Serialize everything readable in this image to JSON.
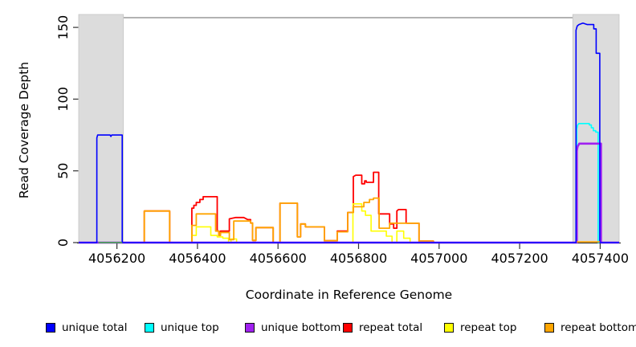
{
  "figure": {
    "xlabel": "Coordinate in Reference Genome",
    "ylabel": "Read Coverage Depth"
  },
  "legend": {
    "items": [
      {
        "label": "unique total",
        "color": "#0000FF"
      },
      {
        "label": "unique top",
        "color": "#00FFFF"
      },
      {
        "label": "unique bottom",
        "color": "#A020F0"
      },
      {
        "label": "repeat total",
        "color": "#FF0000"
      },
      {
        "label": "repeat top",
        "color": "#FFFF00"
      },
      {
        "label": "repeat bottom",
        "color": "#FFA500"
      }
    ]
  },
  "chart_data": {
    "type": "line",
    "step": true,
    "title": "",
    "xlabel": "Coordinate in Reference Genome",
    "ylabel": "Read Coverage Depth",
    "xlim": [
      4056105,
      4057447
    ],
    "ylim": [
      0,
      156.8
    ],
    "x_ticks": [
      4056200,
      4056400,
      4056600,
      4056800,
      4057000,
      4057200,
      4057400
    ],
    "y_ticks": [
      0,
      50,
      100,
      150
    ],
    "grid": false,
    "legend_position": "bottom",
    "shaded_regions": [
      {
        "name": "left-highlight",
        "x0": 4056105,
        "x1": 4056216,
        "color": "#DCDCDC"
      },
      {
        "name": "right-highlight",
        "x0": 4057332,
        "x1": 4057447,
        "color": "#DCDCDC"
      }
    ],
    "series": [
      {
        "name": "unique total",
        "color": "#0000FF",
        "points": [
          [
            4056105,
            0
          ],
          [
            4056150,
            0
          ],
          [
            4056150,
            73
          ],
          [
            4056152,
            75
          ],
          [
            4056183,
            75
          ],
          [
            4056185,
            74
          ],
          [
            4056187,
            75
          ],
          [
            4056213,
            75
          ],
          [
            4056213,
            0
          ],
          [
            4057340,
            0
          ],
          [
            4057340,
            148
          ],
          [
            4057343,
            151
          ],
          [
            4057347,
            152
          ],
          [
            4057357,
            153
          ],
          [
            4057368,
            152
          ],
          [
            4057384,
            152
          ],
          [
            4057384,
            149
          ],
          [
            4057390,
            149
          ],
          [
            4057390,
            132
          ],
          [
            4057399,
            132
          ],
          [
            4057399,
            0
          ],
          [
            4057447,
            0
          ]
        ]
      },
      {
        "name": "unique top",
        "color": "#00FFFF",
        "points": [
          [
            4056105,
            0
          ],
          [
            4057342,
            0
          ],
          [
            4057342,
            79
          ],
          [
            4057344,
            82
          ],
          [
            4057347,
            83
          ],
          [
            4057373,
            83
          ],
          [
            4057373,
            82
          ],
          [
            4057378,
            82
          ],
          [
            4057378,
            80
          ],
          [
            4057383,
            80
          ],
          [
            4057383,
            78
          ],
          [
            4057389,
            78
          ],
          [
            4057389,
            77
          ],
          [
            4057395,
            77
          ],
          [
            4057395,
            0
          ],
          [
            4057447,
            0
          ]
        ]
      },
      {
        "name": "unique bottom",
        "color": "#A020F0",
        "points": [
          [
            4056105,
            0
          ],
          [
            4057342,
            0
          ],
          [
            4057342,
            64
          ],
          [
            4057344,
            67
          ],
          [
            4057348,
            69
          ],
          [
            4057402,
            69
          ],
          [
            4057402,
            0
          ],
          [
            4057447,
            0
          ]
        ]
      },
      {
        "name": "repeat total",
        "color": "#FF0000",
        "points": [
          [
            4056268,
            0
          ],
          [
            4056268,
            22
          ],
          [
            4056331,
            22
          ],
          [
            4056331,
            0
          ],
          [
            4056386,
            0
          ],
          [
            4056386,
            24
          ],
          [
            4056391,
            24
          ],
          [
            4056391,
            26
          ],
          [
            4056397,
            26
          ],
          [
            4056397,
            28
          ],
          [
            4056406,
            28
          ],
          [
            4056406,
            30
          ],
          [
            4056414,
            30
          ],
          [
            4056414,
            32
          ],
          [
            4056449,
            32
          ],
          [
            4056449,
            8
          ],
          [
            4056453,
            8
          ],
          [
            4056453,
            5
          ],
          [
            4056457,
            5
          ],
          [
            4056457,
            8
          ],
          [
            4056479,
            8
          ],
          [
            4056479,
            16.5
          ],
          [
            4056495,
            17.5
          ],
          [
            4056515,
            17.5
          ],
          [
            4056525,
            16
          ],
          [
            4056532,
            16
          ],
          [
            4056532,
            13.6
          ],
          [
            4056537,
            13.6
          ],
          [
            4056537,
            1.5
          ],
          [
            4056545,
            1.5
          ],
          [
            4056545,
            10.5
          ],
          [
            4056588,
            10.5
          ],
          [
            4056588,
            0
          ],
          [
            4056605,
            0
          ],
          [
            4056605,
            27.5
          ],
          [
            4056648,
            27.5
          ],
          [
            4056648,
            4
          ],
          [
            4056656,
            4
          ],
          [
            4056656,
            13
          ],
          [
            4056668,
            13
          ],
          [
            4056668,
            11
          ],
          [
            4056715,
            11
          ],
          [
            4056715,
            1.3
          ],
          [
            4056747,
            1.3
          ],
          [
            4056747,
            8
          ],
          [
            4056773,
            8
          ],
          [
            4056773,
            21
          ],
          [
            4056787,
            21
          ],
          [
            4056787,
            46
          ],
          [
            4056793,
            47
          ],
          [
            4056808,
            47
          ],
          [
            4056808,
            41
          ],
          [
            4056815,
            41
          ],
          [
            4056815,
            43
          ],
          [
            4056819,
            43
          ],
          [
            4056819,
            42
          ],
          [
            4056837,
            42
          ],
          [
            4056837,
            49
          ],
          [
            4056850,
            49
          ],
          [
            4056850,
            20
          ],
          [
            4056877,
            20
          ],
          [
            4056877,
            13
          ],
          [
            4056887,
            13
          ],
          [
            4056887,
            10
          ],
          [
            4056895,
            10
          ],
          [
            4056895,
            22
          ],
          [
            4056899,
            23
          ],
          [
            4056918,
            23
          ],
          [
            4056918,
            13.5
          ],
          [
            4056950,
            13.5
          ],
          [
            4056950,
            1
          ],
          [
            4056986,
            1
          ],
          [
            4056986,
            0
          ]
        ]
      },
      {
        "name": "repeat top",
        "color": "#FFFF00",
        "points": [
          [
            4056386,
            0
          ],
          [
            4056386,
            5
          ],
          [
            4056397,
            5
          ],
          [
            4056397,
            11
          ],
          [
            4056433,
            11
          ],
          [
            4056433,
            5
          ],
          [
            4056449,
            5
          ],
          [
            4056449,
            4
          ],
          [
            4056463,
            4
          ],
          [
            4056463,
            3
          ],
          [
            4056477,
            3
          ],
          [
            4056477,
            0
          ],
          [
            4056483,
            0
          ],
          [
            4056483,
            2.5
          ],
          [
            4056497,
            2.5
          ],
          [
            4056497,
            0
          ],
          [
            4056786,
            0
          ],
          [
            4056786,
            27
          ],
          [
            4056808,
            27
          ],
          [
            4056808,
            22
          ],
          [
            4056817,
            22
          ],
          [
            4056817,
            19
          ],
          [
            4056831,
            19
          ],
          [
            4056831,
            8
          ],
          [
            4056869,
            8
          ],
          [
            4056869,
            4.5
          ],
          [
            4056883,
            4.5
          ],
          [
            4056883,
            0
          ],
          [
            4056895,
            0
          ],
          [
            4056895,
            8
          ],
          [
            4056912,
            8
          ],
          [
            4056912,
            3
          ],
          [
            4056928,
            3
          ],
          [
            4056928,
            0
          ]
        ]
      },
      {
        "name": "repeat bottom",
        "color": "#FFA500",
        "points": [
          [
            4056268,
            0
          ],
          [
            4056268,
            22
          ],
          [
            4056331,
            22
          ],
          [
            4056331,
            0
          ],
          [
            4056386,
            0
          ],
          [
            4056386,
            12
          ],
          [
            4056397,
            12
          ],
          [
            4056397,
            20
          ],
          [
            4056445,
            20
          ],
          [
            4056445,
            8
          ],
          [
            4056453,
            8
          ],
          [
            4056453,
            5
          ],
          [
            4056457,
            5
          ],
          [
            4056457,
            7
          ],
          [
            4056479,
            7
          ],
          [
            4056479,
            2
          ],
          [
            4056490,
            2
          ],
          [
            4056490,
            15
          ],
          [
            4056532,
            15
          ],
          [
            4056532,
            13.6
          ],
          [
            4056537,
            13.6
          ],
          [
            4056537,
            1.5
          ],
          [
            4056545,
            1.5
          ],
          [
            4056545,
            10.5
          ],
          [
            4056588,
            10.5
          ],
          [
            4056588,
            0
          ],
          [
            4056605,
            0
          ],
          [
            4056605,
            27.5
          ],
          [
            4056648,
            27.5
          ],
          [
            4056648,
            4
          ],
          [
            4056656,
            4
          ],
          [
            4056656,
            13
          ],
          [
            4056668,
            13
          ],
          [
            4056668,
            11
          ],
          [
            4056715,
            11
          ],
          [
            4056715,
            1.3
          ],
          [
            4056747,
            1.3
          ],
          [
            4056747,
            7.5
          ],
          [
            4056773,
            7.5
          ],
          [
            4056773,
            21
          ],
          [
            4056787,
            21
          ],
          [
            4056787,
            25
          ],
          [
            4056813,
            25
          ],
          [
            4056813,
            28
          ],
          [
            4056827,
            28
          ],
          [
            4056827,
            30
          ],
          [
            4056837,
            30
          ],
          [
            4056837,
            31
          ],
          [
            4056851,
            31
          ],
          [
            4056851,
            10
          ],
          [
            4056877,
            10
          ],
          [
            4056877,
            13.5
          ],
          [
            4056950,
            13.5
          ],
          [
            4056950,
            1
          ],
          [
            4056986,
            1
          ],
          [
            4056986,
            0
          ]
        ]
      }
    ],
    "overlays": [
      {
        "name": "zero-overlap-left-region",
        "color": "#3CBB3C",
        "x0": 4056154,
        "x1": 4056213,
        "y": 0
      },
      {
        "name": "repeat-bottom-zero-right",
        "color": "#FFA500",
        "x0": 4057342,
        "x1": 4057399,
        "y": 0.5
      }
    ]
  }
}
